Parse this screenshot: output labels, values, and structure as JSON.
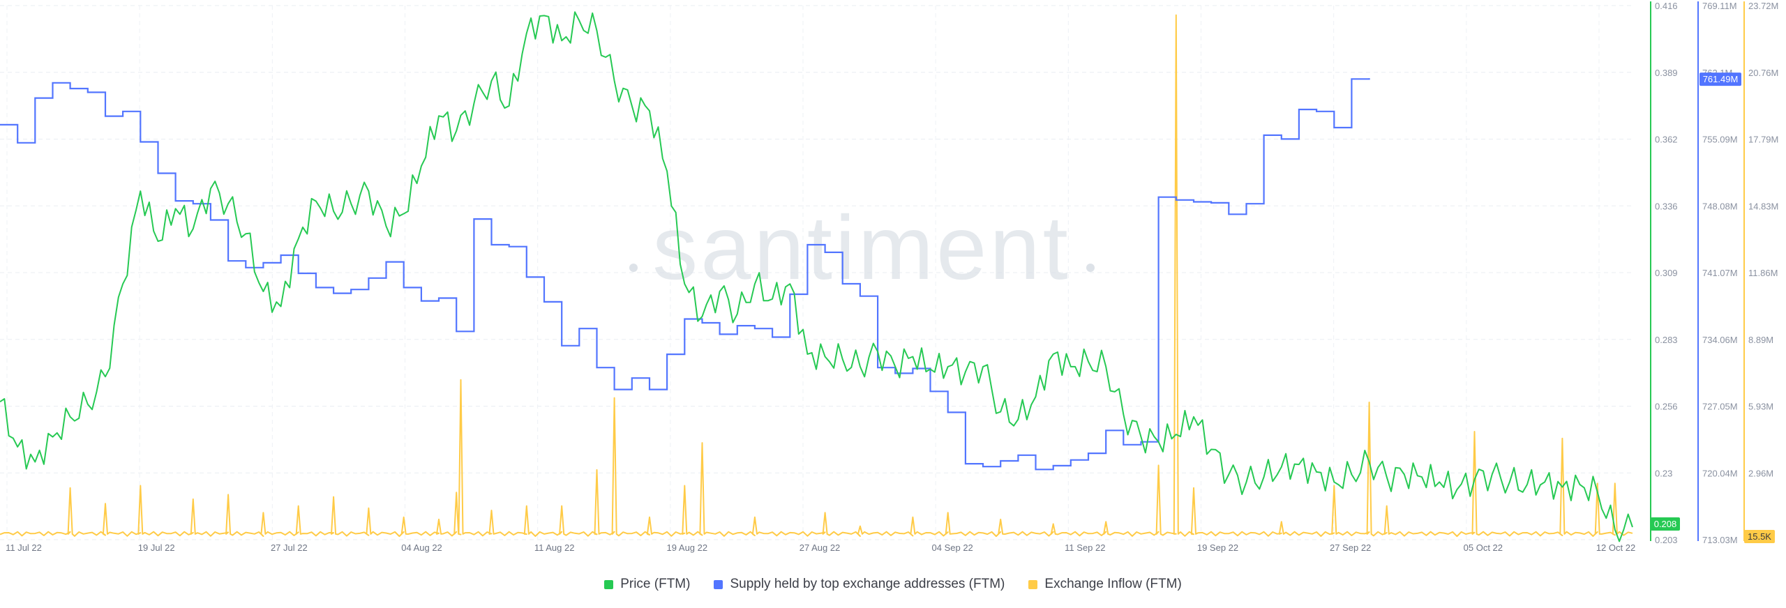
{
  "chart_data": {
    "type": "line",
    "x_range": [
      "2022-07-11",
      "2022-10-12"
    ],
    "x_ticks": [
      "11 Jul 22",
      "19 Jul 22",
      "27 Jul 22",
      "04 Aug 22",
      "11 Aug 22",
      "19 Aug 22",
      "27 Aug 22",
      "04 Sep 22",
      "11 Sep 22",
      "19 Sep 22",
      "27 Sep 22",
      "05 Oct 22",
      "12 Oct 22"
    ],
    "grid": true,
    "legend_position": "bottom-center",
    "watermark": "santiment",
    "axes": {
      "price": {
        "range": [
          0.203,
          0.416
        ],
        "ticks": [
          "0.416",
          "0.389",
          "0.362",
          "0.336",
          "0.309",
          "0.283",
          "0.256",
          "0.23",
          "0.203"
        ],
        "color": "#26c953"
      },
      "supply": {
        "range": [
          713.03,
          769.11
        ],
        "ticks": [
          "769.11M",
          "762.1M",
          "755.09M",
          "748.08M",
          "741.07M",
          "734.06M",
          "727.05M",
          "720.04M",
          "713.03M"
        ],
        "color": "#5275ff"
      },
      "inflow": {
        "range": [
          0,
          23.72
        ],
        "ticks": [
          "23.72M",
          "20.76M",
          "17.79M",
          "14.83M",
          "11.86M",
          "8.89M",
          "5.93M",
          "2.96M"
        ],
        "color": "#ffcb47"
      }
    },
    "last_values": {
      "price": "0.208",
      "supply": "761.49M",
      "inflow": "15.5K"
    },
    "series": [
      {
        "name": "Price (FTM)",
        "axis": "price",
        "color": "#26c953",
        "points": [
          [
            "2022-07-11",
            0.258
          ],
          [
            "2022-07-12",
            0.24
          ],
          [
            "2022-07-13",
            0.234
          ],
          [
            "2022-07-14",
            0.244
          ],
          [
            "2022-07-15",
            0.252
          ],
          [
            "2022-07-16",
            0.257
          ],
          [
            "2022-07-17",
            0.268
          ],
          [
            "2022-07-18",
            0.305
          ],
          [
            "2022-07-19",
            0.342
          ],
          [
            "2022-07-20",
            0.322
          ],
          [
            "2022-07-21",
            0.335
          ],
          [
            "2022-07-22",
            0.327
          ],
          [
            "2022-07-23",
            0.343
          ],
          [
            "2022-07-24",
            0.337
          ],
          [
            "2022-07-25",
            0.325
          ],
          [
            "2022-07-26",
            0.302
          ],
          [
            "2022-07-27",
            0.296
          ],
          [
            "2022-07-28",
            0.323
          ],
          [
            "2022-07-29",
            0.338
          ],
          [
            "2022-07-30",
            0.334
          ],
          [
            "2022-07-31",
            0.337
          ],
          [
            "2022-08-01",
            0.342
          ],
          [
            "2022-08-02",
            0.328
          ],
          [
            "2022-08-03",
            0.333
          ],
          [
            "2022-08-04",
            0.352
          ],
          [
            "2022-08-05",
            0.372
          ],
          [
            "2022-08-06",
            0.366
          ],
          [
            "2022-08-07",
            0.377
          ],
          [
            "2022-08-08",
            0.386
          ],
          [
            "2022-08-09",
            0.376
          ],
          [
            "2022-08-10",
            0.405
          ],
          [
            "2022-08-11",
            0.412
          ],
          [
            "2022-08-12",
            0.402
          ],
          [
            "2022-08-13",
            0.41
          ],
          [
            "2022-08-14",
            0.406
          ],
          [
            "2022-08-15",
            0.386
          ],
          [
            "2022-08-16",
            0.376
          ],
          [
            "2022-08-17",
            0.374
          ],
          [
            "2022-08-18",
            0.35
          ],
          [
            "2022-08-19",
            0.305
          ],
          [
            "2022-08-20",
            0.292
          ],
          [
            "2022-08-21",
            0.302
          ],
          [
            "2022-08-22",
            0.293
          ],
          [
            "2022-08-23",
            0.305
          ],
          [
            "2022-08-24",
            0.299
          ],
          [
            "2022-08-25",
            0.305
          ],
          [
            "2022-08-26",
            0.277
          ],
          [
            "2022-08-27",
            0.276
          ],
          [
            "2022-08-28",
            0.275
          ],
          [
            "2022-08-29",
            0.272
          ],
          [
            "2022-08-30",
            0.278
          ],
          [
            "2022-08-31",
            0.272
          ],
          [
            "2022-09-01",
            0.276
          ],
          [
            "2022-09-02",
            0.271
          ],
          [
            "2022-09-03",
            0.272
          ],
          [
            "2022-09-04",
            0.27
          ],
          [
            "2022-09-05",
            0.272
          ],
          [
            "2022-09-06",
            0.254
          ],
          [
            "2022-09-07",
            0.251
          ],
          [
            "2022-09-08",
            0.26
          ],
          [
            "2022-09-09",
            0.277
          ],
          [
            "2022-09-10",
            0.272
          ],
          [
            "2022-09-11",
            0.274
          ],
          [
            "2022-09-12",
            0.272
          ],
          [
            "2022-09-13",
            0.253
          ],
          [
            "2022-09-14",
            0.244
          ],
          [
            "2022-09-15",
            0.242
          ],
          [
            "2022-09-16",
            0.245
          ],
          [
            "2022-09-17",
            0.252
          ],
          [
            "2022-09-18",
            0.239
          ],
          [
            "2022-09-19",
            0.229
          ],
          [
            "2022-09-20",
            0.226
          ],
          [
            "2022-09-21",
            0.228
          ],
          [
            "2022-09-22",
            0.232
          ],
          [
            "2022-09-23",
            0.233
          ],
          [
            "2022-09-24",
            0.23
          ],
          [
            "2022-09-25",
            0.226
          ],
          [
            "2022-09-26",
            0.229
          ],
          [
            "2022-09-27",
            0.234
          ],
          [
            "2022-09-28",
            0.228
          ],
          [
            "2022-09-29",
            0.229
          ],
          [
            "2022-09-30",
            0.228
          ],
          [
            "2022-10-01",
            0.226
          ],
          [
            "2022-10-02",
            0.223
          ],
          [
            "2022-10-03",
            0.227
          ],
          [
            "2022-10-04",
            0.229
          ],
          [
            "2022-10-05",
            0.226
          ],
          [
            "2022-10-06",
            0.225
          ],
          [
            "2022-10-07",
            0.226
          ],
          [
            "2022-10-08",
            0.224
          ],
          [
            "2022-10-09",
            0.225
          ],
          [
            "2022-10-10",
            0.222
          ],
          [
            "2022-10-11",
            0.207
          ],
          [
            "2022-10-12",
            0.208
          ]
        ]
      },
      {
        "name": "Supply held by top exchange addresses (FTM)",
        "axis": "supply",
        "color": "#5275ff",
        "step": true,
        "points": [
          [
            "2022-07-11",
            756.6
          ],
          [
            "2022-07-12",
            754.7
          ],
          [
            "2022-07-13",
            759.4
          ],
          [
            "2022-07-14",
            761.0
          ],
          [
            "2022-07-15",
            760.4
          ],
          [
            "2022-07-16",
            760.0
          ],
          [
            "2022-07-17",
            757.5
          ],
          [
            "2022-07-18",
            758.0
          ],
          [
            "2022-07-19",
            754.8
          ],
          [
            "2022-07-20",
            751.5
          ],
          [
            "2022-07-21",
            748.6
          ],
          [
            "2022-07-22",
            748.3
          ],
          [
            "2022-07-23",
            746.6
          ],
          [
            "2022-07-24",
            742.3
          ],
          [
            "2022-07-25",
            741.6
          ],
          [
            "2022-07-26",
            742.1
          ],
          [
            "2022-07-27",
            742.9
          ],
          [
            "2022-07-28",
            741.0
          ],
          [
            "2022-07-29",
            739.5
          ],
          [
            "2022-07-30",
            738.9
          ],
          [
            "2022-07-31",
            739.3
          ],
          [
            "2022-08-01",
            740.5
          ],
          [
            "2022-08-02",
            742.2
          ],
          [
            "2022-08-03",
            739.5
          ],
          [
            "2022-08-04",
            738.1
          ],
          [
            "2022-08-05",
            738.4
          ],
          [
            "2022-08-06",
            734.9
          ],
          [
            "2022-08-07",
            746.7
          ],
          [
            "2022-08-08",
            744.0
          ],
          [
            "2022-08-09",
            743.8
          ],
          [
            "2022-08-10",
            740.6
          ],
          [
            "2022-08-11",
            738.0
          ],
          [
            "2022-08-12",
            733.4
          ],
          [
            "2022-08-13",
            735.2
          ],
          [
            "2022-08-14",
            731.1
          ],
          [
            "2022-08-15",
            728.8
          ],
          [
            "2022-08-16",
            730.0
          ],
          [
            "2022-08-17",
            728.8
          ],
          [
            "2022-08-18",
            732.5
          ],
          [
            "2022-08-19",
            736.2
          ],
          [
            "2022-08-20",
            735.8
          ],
          [
            "2022-08-21",
            734.6
          ],
          [
            "2022-08-22",
            735.5
          ],
          [
            "2022-08-23",
            735.2
          ],
          [
            "2022-08-24",
            734.3
          ],
          [
            "2022-08-25",
            738.8
          ],
          [
            "2022-08-26",
            744.0
          ],
          [
            "2022-08-27",
            743.2
          ],
          [
            "2022-08-28",
            739.9
          ],
          [
            "2022-08-29",
            738.6
          ],
          [
            "2022-08-30",
            731.1
          ],
          [
            "2022-08-31",
            730.5
          ],
          [
            "2022-09-01",
            731.0
          ],
          [
            "2022-09-02",
            728.6
          ],
          [
            "2022-09-03",
            726.4
          ],
          [
            "2022-09-04",
            721.0
          ],
          [
            "2022-09-05",
            720.7
          ],
          [
            "2022-09-06",
            721.3
          ],
          [
            "2022-09-07",
            721.9
          ],
          [
            "2022-09-08",
            720.4
          ],
          [
            "2022-09-09",
            720.8
          ],
          [
            "2022-09-10",
            721.4
          ],
          [
            "2022-09-11",
            722.1
          ],
          [
            "2022-09-12",
            724.5
          ],
          [
            "2022-09-13",
            723.0
          ],
          [
            "2022-09-14",
            723.3
          ],
          [
            "2022-09-15",
            749.0
          ],
          [
            "2022-09-16",
            748.7
          ],
          [
            "2022-09-17",
            748.5
          ],
          [
            "2022-09-18",
            748.4
          ],
          [
            "2022-09-19",
            747.2
          ],
          [
            "2022-09-20",
            748.3
          ],
          [
            "2022-09-21",
            755.5
          ],
          [
            "2022-09-22",
            755.1
          ],
          [
            "2022-09-23",
            758.2
          ],
          [
            "2022-09-24",
            758.0
          ],
          [
            "2022-09-25",
            756.3
          ],
          [
            "2022-09-26",
            761.4
          ],
          [
            "2022-09-27",
            761.49
          ]
        ]
      },
      {
        "name": "Exchange Inflow (FTM)",
        "axis": "inflow",
        "color": "#ffcb47",
        "baseline": 0.25,
        "spikes": [
          [
            "2022-07-15",
            2.3
          ],
          [
            "2022-07-17",
            1.6
          ],
          [
            "2022-07-19",
            2.4
          ],
          [
            "2022-07-22",
            1.8
          ],
          [
            "2022-07-24",
            2.0
          ],
          [
            "2022-07-26",
            1.2
          ],
          [
            "2022-07-28",
            1.5
          ],
          [
            "2022-07-30",
            1.9
          ],
          [
            "2022-08-01",
            1.4
          ],
          [
            "2022-08-03",
            1.0
          ],
          [
            "2022-08-05",
            0.9
          ],
          [
            "2022-08-06",
            2.1
          ],
          [
            "2022-08-06T06:00",
            7.1
          ],
          [
            "2022-08-08",
            1.3
          ],
          [
            "2022-08-10",
            1.5
          ],
          [
            "2022-08-12",
            1.5
          ],
          [
            "2022-08-14",
            3.1
          ],
          [
            "2022-08-15",
            6.3
          ],
          [
            "2022-08-17",
            1.0
          ],
          [
            "2022-08-19",
            2.4
          ],
          [
            "2022-08-20",
            4.3
          ],
          [
            "2022-08-23",
            1.0
          ],
          [
            "2022-08-27",
            1.2
          ],
          [
            "2022-08-29",
            0.6
          ],
          [
            "2022-09-01",
            1.0
          ],
          [
            "2022-09-03",
            1.2
          ],
          [
            "2022-09-06",
            0.9
          ],
          [
            "2022-09-09",
            0.7
          ],
          [
            "2022-09-12",
            0.8
          ],
          [
            "2022-09-15",
            3.3
          ],
          [
            "2022-09-16",
            23.3
          ],
          [
            "2022-09-17",
            2.3
          ],
          [
            "2022-09-22",
            0.8
          ],
          [
            "2022-09-25",
            2.4
          ],
          [
            "2022-09-27",
            6.1
          ],
          [
            "2022-09-28",
            1.5
          ],
          [
            "2022-10-03",
            4.8
          ],
          [
            "2022-10-08",
            4.5
          ],
          [
            "2022-10-10",
            2.5
          ],
          [
            "2022-10-11",
            2.5
          ]
        ]
      }
    ]
  }
}
